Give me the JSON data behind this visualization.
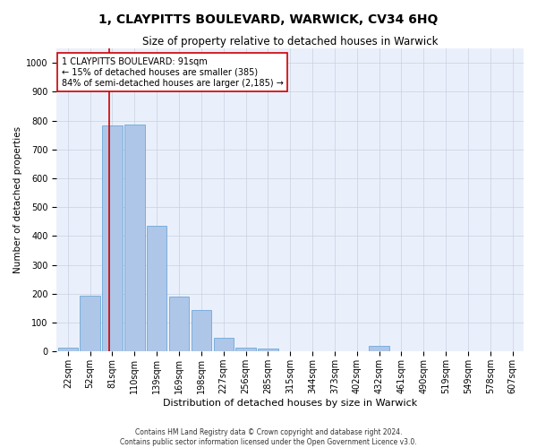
{
  "title": "1, CLAYPITTS BOULEVARD, WARWICK, CV34 6HQ",
  "subtitle": "Size of property relative to detached houses in Warwick",
  "xlabel": "Distribution of detached houses by size in Warwick",
  "ylabel": "Number of detached properties",
  "bar_color": "#aec6e8",
  "bar_edge_color": "#5a9fd4",
  "background_color": "#eaf0fb",
  "categories": [
    "22sqm",
    "52sqm",
    "81sqm",
    "110sqm",
    "139sqm",
    "169sqm",
    "198sqm",
    "227sqm",
    "256sqm",
    "285sqm",
    "315sqm",
    "344sqm",
    "373sqm",
    "402sqm",
    "432sqm",
    "461sqm",
    "490sqm",
    "519sqm",
    "549sqm",
    "578sqm",
    "607sqm"
  ],
  "values": [
    13,
    193,
    783,
    787,
    437,
    190,
    145,
    48,
    13,
    10,
    0,
    0,
    0,
    0,
    20,
    0,
    0,
    0,
    0,
    0,
    0
  ],
  "ylim": [
    0,
    1050
  ],
  "yticks": [
    0,
    100,
    200,
    300,
    400,
    500,
    600,
    700,
    800,
    900,
    1000
  ],
  "vline_color": "#cc0000",
  "annotation_text": "1 CLAYPITTS BOULEVARD: 91sqm\n← 15% of detached houses are smaller (385)\n84% of semi-detached houses are larger (2,185) →",
  "annotation_box_color": "#ffffff",
  "annotation_box_edge": "#cc0000",
  "footer_line1": "Contains HM Land Registry data © Crown copyright and database right 2024.",
  "footer_line2": "Contains public sector information licensed under the Open Government Licence v3.0.",
  "title_fontsize": 10,
  "subtitle_fontsize": 8.5,
  "ylabel_fontsize": 7.5,
  "xlabel_fontsize": 8,
  "tick_fontsize": 7,
  "annotation_fontsize": 7,
  "footer_fontsize": 5.5
}
